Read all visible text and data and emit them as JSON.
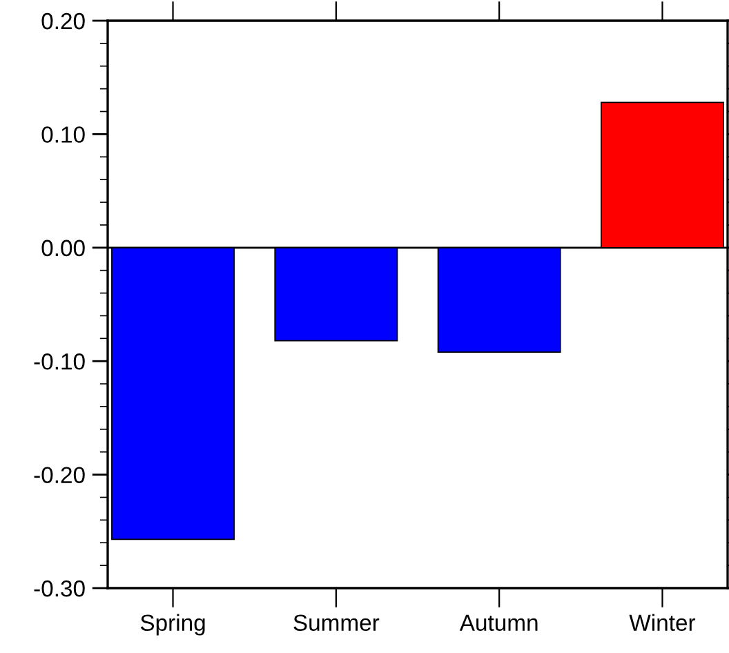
{
  "chart_data": {
    "type": "bar",
    "categories": [
      "Spring",
      "Summer",
      "Autumn",
      "Winter"
    ],
    "values": [
      -0.257,
      -0.082,
      -0.092,
      0.128
    ],
    "colors": [
      "#0000ff",
      "#0000ff",
      "#0000ff",
      "#ff0000"
    ],
    "ylim": [
      -0.3,
      0.2
    ],
    "yticks": [
      {
        "value": -0.3,
        "label": "-0.30"
      },
      {
        "value": -0.2,
        "label": "-0.20"
      },
      {
        "value": -0.1,
        "label": "-0.10"
      },
      {
        "value": 0,
        "label": "0.00"
      },
      {
        "value": 0.1,
        "label": "0.10"
      },
      {
        "value": 0.2,
        "label": "0.20"
      }
    ],
    "ref_lines": [
      {
        "axis": "y",
        "value": 0,
        "color": "#000000"
      }
    ],
    "grid": false,
    "legend": false
  }
}
